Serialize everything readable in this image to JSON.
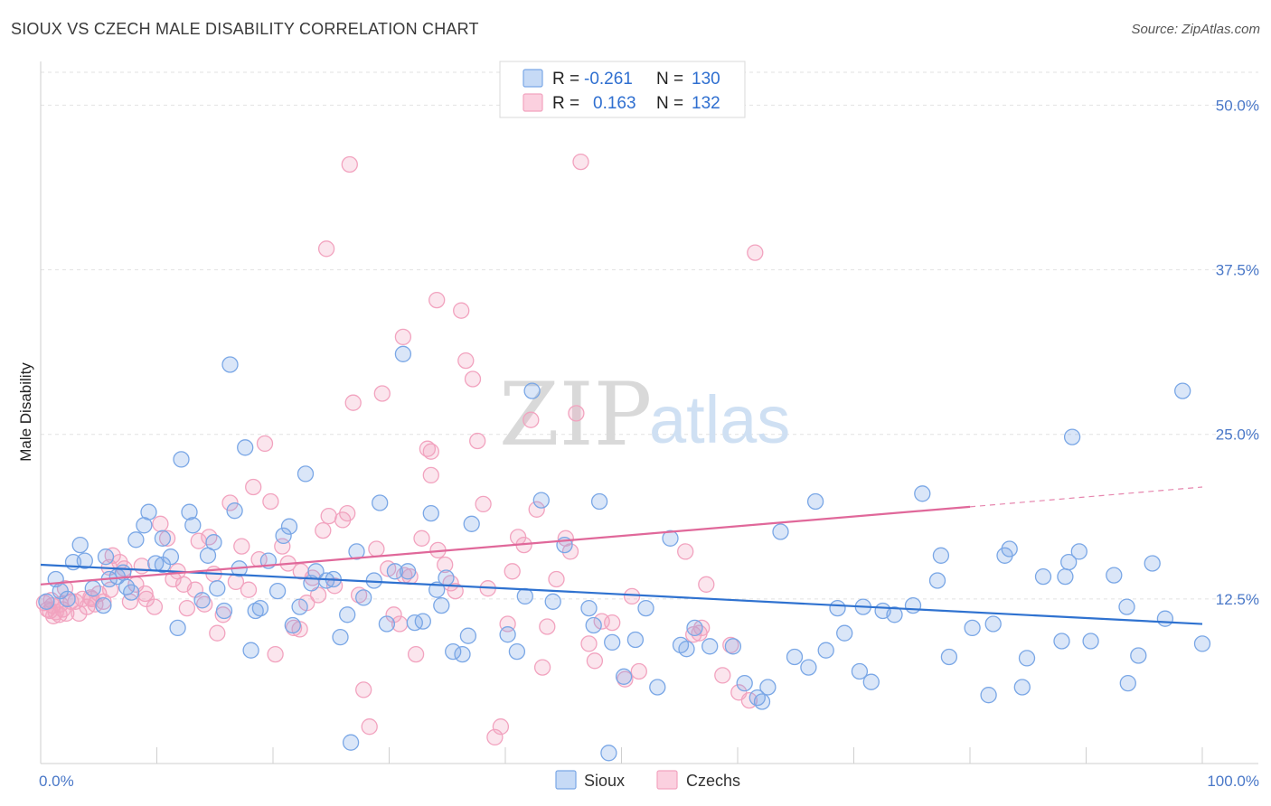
{
  "title": "SIOUX VS CZECH MALE DISABILITY CORRELATION CHART",
  "source": "Source: ZipAtlas.com",
  "chart_data": {
    "type": "scatter",
    "title": "SIOUX VS CZECH MALE DISABILITY CORRELATION CHART",
    "xlabel": "",
    "ylabel": "Male Disability",
    "xlim": [
      0,
      100
    ],
    "ylim": [
      0,
      52.5
    ],
    "x_tick_labels": [
      "0.0%",
      "100.0%"
    ],
    "y_ticks": [
      12.5,
      25.0,
      37.5,
      50.0
    ],
    "y_tick_labels": [
      "12.5%",
      "25.0%",
      "37.5%",
      "50.0%"
    ],
    "grid": true,
    "legend_placement": "top-center",
    "watermark": {
      "zip": "ZIP",
      "atlas": "atlas"
    },
    "legend": [
      {
        "r_label": "R =",
        "r_value": "-0.261",
        "n_label": "N =",
        "n_value": "130"
      },
      {
        "r_label": "R =",
        "r_value": "0.163",
        "n_label": "N =",
        "n_value": "132"
      }
    ],
    "series": [
      {
        "name": "Sioux",
        "color": "#7aa7e6",
        "line_color": "#2f72d0",
        "trend": {
          "x0": 0,
          "y0": 15.1,
          "x1": 100,
          "y1": 10.6
        },
        "points": [
          [
            0.5,
            12.3
          ],
          [
            1.3,
            14.0
          ],
          [
            1.7,
            13.1
          ],
          [
            2.3,
            12.5
          ],
          [
            2.8,
            15.3
          ],
          [
            3.4,
            16.6
          ],
          [
            3.8,
            15.4
          ],
          [
            4.5,
            13.3
          ],
          [
            5.4,
            12.0
          ],
          [
            5.6,
            15.7
          ],
          [
            5.9,
            14.0
          ],
          [
            6.6,
            14.2
          ],
          [
            7.1,
            14.5
          ],
          [
            7.4,
            13.4
          ],
          [
            7.8,
            13.0
          ],
          [
            8.2,
            17.0
          ],
          [
            8.9,
            18.1
          ],
          [
            9.3,
            19.1
          ],
          [
            9.9,
            15.2
          ],
          [
            10.5,
            17.1
          ],
          [
            10.5,
            15.1
          ],
          [
            11.2,
            15.7
          ],
          [
            11.8,
            10.3
          ],
          [
            12.1,
            23.1
          ],
          [
            12.8,
            19.1
          ],
          [
            13.1,
            18.1
          ],
          [
            13.9,
            12.4
          ],
          [
            14.4,
            15.8
          ],
          [
            14.9,
            16.8
          ],
          [
            15.2,
            13.3
          ],
          [
            15.8,
            11.6
          ],
          [
            16.3,
            30.3
          ],
          [
            16.7,
            19.2
          ],
          [
            17.1,
            14.8
          ],
          [
            17.6,
            24.0
          ],
          [
            18.1,
            8.6
          ],
          [
            18.5,
            11.6
          ],
          [
            18.9,
            11.8
          ],
          [
            19.6,
            15.4
          ],
          [
            20.4,
            13.1
          ],
          [
            20.9,
            17.3
          ],
          [
            21.4,
            18.0
          ],
          [
            21.7,
            10.5
          ],
          [
            22.3,
            11.9
          ],
          [
            22.8,
            22.0
          ],
          [
            23.3,
            13.7
          ],
          [
            23.7,
            14.6
          ],
          [
            24.6,
            13.9
          ],
          [
            25.2,
            14.0
          ],
          [
            25.8,
            9.6
          ],
          [
            26.4,
            11.3
          ],
          [
            26.7,
            1.6
          ],
          [
            27.2,
            16.1
          ],
          [
            27.8,
            12.6
          ],
          [
            28.7,
            13.9
          ],
          [
            29.2,
            19.8
          ],
          [
            29.8,
            10.6
          ],
          [
            30.5,
            14.6
          ],
          [
            31.2,
            31.1
          ],
          [
            31.6,
            14.6
          ],
          [
            32.2,
            10.7
          ],
          [
            32.9,
            10.8
          ],
          [
            33.6,
            19.0
          ],
          [
            34.1,
            13.2
          ],
          [
            34.5,
            12.0
          ],
          [
            34.9,
            14.1
          ],
          [
            35.5,
            8.5
          ],
          [
            36.3,
            8.3
          ],
          [
            36.8,
            9.7
          ],
          [
            37.1,
            18.2
          ],
          [
            40.2,
            9.8
          ],
          [
            41.0,
            8.5
          ],
          [
            41.7,
            12.7
          ],
          [
            42.3,
            28.3
          ],
          [
            43.1,
            20.0
          ],
          [
            44.1,
            12.3
          ],
          [
            45.1,
            16.6
          ],
          [
            47.2,
            11.8
          ],
          [
            47.6,
            10.5
          ],
          [
            48.1,
            19.9
          ],
          [
            48.9,
            0.8
          ],
          [
            49.2,
            9.2
          ],
          [
            50.2,
            6.6
          ],
          [
            51.2,
            9.4
          ],
          [
            52.1,
            11.8
          ],
          [
            53.1,
            5.8
          ],
          [
            54.2,
            17.1
          ],
          [
            55.1,
            9.0
          ],
          [
            55.6,
            8.7
          ],
          [
            56.3,
            10.3
          ],
          [
            57.6,
            8.9
          ],
          [
            59.6,
            8.9
          ],
          [
            60.6,
            6.1
          ],
          [
            61.7,
            5.0
          ],
          [
            62.1,
            4.7
          ],
          [
            62.6,
            5.8
          ],
          [
            63.7,
            17.6
          ],
          [
            64.9,
            8.1
          ],
          [
            66.1,
            7.3
          ],
          [
            66.7,
            19.9
          ],
          [
            67.6,
            8.6
          ],
          [
            68.6,
            11.8
          ],
          [
            69.2,
            9.9
          ],
          [
            70.5,
            7.0
          ],
          [
            70.8,
            11.9
          ],
          [
            71.5,
            6.2
          ],
          [
            72.5,
            11.6
          ],
          [
            73.5,
            11.3
          ],
          [
            75.1,
            12.0
          ],
          [
            75.9,
            20.5
          ],
          [
            77.2,
            13.9
          ],
          [
            77.5,
            15.8
          ],
          [
            78.2,
            8.1
          ],
          [
            80.2,
            10.3
          ],
          [
            81.6,
            5.2
          ],
          [
            82.0,
            10.6
          ],
          [
            83.0,
            15.8
          ],
          [
            83.4,
            16.3
          ],
          [
            84.5,
            5.8
          ],
          [
            84.9,
            8.0
          ],
          [
            86.3,
            14.2
          ],
          [
            87.9,
            9.3
          ],
          [
            88.2,
            14.2
          ],
          [
            88.5,
            15.3
          ],
          [
            88.8,
            24.8
          ],
          [
            89.4,
            16.1
          ],
          [
            90.4,
            9.3
          ],
          [
            92.4,
            14.3
          ],
          [
            93.5,
            11.9
          ],
          [
            93.6,
            6.1
          ],
          [
            94.5,
            8.2
          ],
          [
            95.7,
            15.2
          ],
          [
            96.8,
            11.0
          ],
          [
            98.3,
            28.3
          ],
          [
            100.0,
            9.1
          ]
        ]
      },
      {
        "name": "Czechs",
        "color": "#f2a3bf",
        "line_color": "#e0689a",
        "trend": {
          "x0": 0,
          "y0": 13.6,
          "x1": 80,
          "y1": 19.5
        },
        "trend_dashed": {
          "x0": 80,
          "y0": 19.5,
          "x1": 100,
          "y1": 21.0
        },
        "points": [
          [
            0.3,
            12.2
          ],
          [
            0.6,
            11.7
          ],
          [
            1.0,
            12.0
          ],
          [
            1.3,
            11.5
          ],
          [
            1.6,
            11.3
          ],
          [
            1.9,
            11.7
          ],
          [
            2.2,
            11.4
          ],
          [
            2.6,
            12.3
          ],
          [
            3.0,
            12.3
          ],
          [
            3.6,
            12.5
          ],
          [
            4.0,
            11.9
          ],
          [
            4.4,
            12.5
          ],
          [
            4.7,
            12.1
          ],
          [
            5.0,
            12.9
          ],
          [
            5.4,
            12.3
          ],
          [
            5.9,
            14.9
          ],
          [
            6.2,
            15.8
          ],
          [
            6.8,
            15.3
          ],
          [
            7.2,
            14.8
          ],
          [
            7.7,
            12.3
          ],
          [
            8.2,
            13.6
          ],
          [
            8.7,
            15.0
          ],
          [
            9.1,
            12.5
          ],
          [
            9.8,
            11.9
          ],
          [
            10.3,
            18.2
          ],
          [
            10.9,
            17.1
          ],
          [
            11.4,
            14.0
          ],
          [
            11.8,
            14.6
          ],
          [
            12.3,
            13.6
          ],
          [
            12.6,
            11.8
          ],
          [
            13.3,
            13.2
          ],
          [
            13.6,
            16.9
          ],
          [
            14.1,
            12.1
          ],
          [
            14.5,
            17.2
          ],
          [
            14.9,
            14.4
          ],
          [
            15.2,
            9.9
          ],
          [
            15.7,
            11.3
          ],
          [
            16.3,
            19.8
          ],
          [
            16.8,
            13.8
          ],
          [
            17.3,
            16.5
          ],
          [
            17.9,
            13.2
          ],
          [
            18.3,
            21.0
          ],
          [
            18.8,
            15.5
          ],
          [
            19.3,
            24.3
          ],
          [
            19.8,
            19.9
          ],
          [
            20.2,
            8.3
          ],
          [
            20.8,
            16.5
          ],
          [
            21.3,
            15.2
          ],
          [
            21.8,
            10.3
          ],
          [
            22.3,
            10.2
          ],
          [
            22.9,
            12.2
          ],
          [
            23.4,
            14.1
          ],
          [
            23.9,
            12.8
          ],
          [
            24.3,
            17.7
          ],
          [
            24.8,
            18.8
          ],
          [
            25.3,
            13.5
          ],
          [
            26.0,
            18.5
          ],
          [
            26.4,
            19.0
          ],
          [
            26.9,
            27.4
          ],
          [
            27.4,
            12.8
          ],
          [
            27.8,
            5.6
          ],
          [
            28.3,
            2.8
          ],
          [
            28.9,
            16.3
          ],
          [
            29.4,
            28.1
          ],
          [
            29.9,
            14.8
          ],
          [
            30.4,
            11.3
          ],
          [
            30.9,
            10.6
          ],
          [
            31.3,
            14.3
          ],
          [
            31.8,
            14.2
          ],
          [
            32.3,
            8.3
          ],
          [
            32.8,
            17.1
          ],
          [
            33.3,
            23.9
          ],
          [
            33.6,
            21.9
          ],
          [
            34.2,
            16.2
          ],
          [
            34.8,
            15.1
          ],
          [
            35.3,
            13.7
          ],
          [
            35.7,
            13.1
          ],
          [
            36.2,
            34.4
          ],
          [
            36.6,
            30.6
          ],
          [
            37.2,
            29.2
          ],
          [
            37.6,
            24.5
          ],
          [
            38.1,
            19.7
          ],
          [
            38.5,
            13.3
          ],
          [
            39.1,
            2.0
          ],
          [
            39.6,
            2.8
          ],
          [
            40.2,
            10.6
          ],
          [
            40.6,
            14.6
          ],
          [
            41.1,
            17.2
          ],
          [
            41.6,
            16.6
          ],
          [
            42.2,
            26.1
          ],
          [
            42.7,
            19.3
          ],
          [
            43.2,
            7.3
          ],
          [
            43.6,
            10.4
          ],
          [
            44.4,
            14.0
          ],
          [
            45.2,
            17.1
          ],
          [
            45.6,
            16.1
          ],
          [
            46.1,
            26.6
          ],
          [
            46.5,
            45.7
          ],
          [
            47.2,
            9.1
          ],
          [
            47.7,
            7.8
          ],
          [
            48.3,
            10.8
          ],
          [
            49.2,
            10.7
          ],
          [
            50.3,
            6.4
          ],
          [
            50.9,
            12.7
          ],
          [
            51.5,
            7.0
          ],
          [
            55.5,
            16.1
          ],
          [
            56.2,
            9.8
          ],
          [
            56.7,
            9.9
          ],
          [
            56.9,
            10.3
          ],
          [
            57.3,
            13.6
          ],
          [
            58.7,
            6.7
          ],
          [
            59.4,
            9.0
          ],
          [
            60.1,
            5.4
          ],
          [
            61.0,
            4.8
          ],
          [
            61.5,
            38.8
          ],
          [
            26.6,
            45.5
          ],
          [
            24.6,
            39.1
          ],
          [
            34.1,
            35.2
          ],
          [
            31.2,
            32.4
          ],
          [
            33.6,
            23.7
          ],
          [
            22.4,
            14.6
          ],
          [
            9.0,
            12.9
          ],
          [
            6.0,
            13.2
          ],
          [
            4.3,
            12.6
          ],
          [
            3.3,
            11.4
          ],
          [
            2.1,
            13.3
          ],
          [
            1.7,
            12.1
          ],
          [
            0.8,
            11.6
          ],
          [
            1.1,
            11.2
          ],
          [
            0.9,
            12.4
          ]
        ]
      }
    ]
  },
  "bottom_legend": [
    {
      "label": "Sioux"
    },
    {
      "label": "Czechs"
    }
  ]
}
